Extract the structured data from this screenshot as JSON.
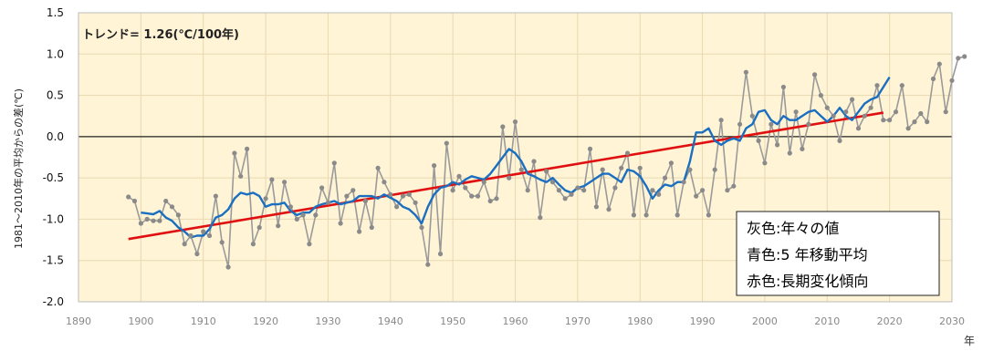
{
  "chart_data": {
    "type": "line",
    "title": "",
    "ylabel": "1981～2010年の平均からの差(℃)",
    "xlabel": "年",
    "annotation": "トレンド= 1.26(℃/100年)",
    "xlim": [
      1890,
      2030
    ],
    "ylim": [
      -2.0,
      1.5
    ],
    "xticks": [
      1890,
      1900,
      1910,
      1920,
      1930,
      1940,
      1950,
      1960,
      1970,
      1980,
      1990,
      2000,
      2010,
      2020,
      2030
    ],
    "yticks": [
      -2.0,
      -1.5,
      -1.0,
      -0.5,
      0.0,
      0.5,
      1.0,
      1.5
    ],
    "grid": true,
    "legend_placement": "bottom-right",
    "legend": [
      "灰色:年々の値",
      "青色:5 年移動平均",
      "赤色:長期変化傾向"
    ],
    "colors": {
      "annual": "#9a9a9a",
      "annual_marker": "#8a8a8a",
      "moving_avg": "#1a6fc0",
      "trend": "#e01010",
      "plot_bg": "#fff4d6",
      "grid": "#e8d9b0"
    },
    "start_year": 1898,
    "annual": [
      -0.73,
      -0.78,
      -1.05,
      -1.0,
      -1.02,
      -1.02,
      -0.78,
      -0.85,
      -0.95,
      -1.3,
      -1.2,
      -1.42,
      -1.15,
      -1.2,
      -0.72,
      -1.28,
      -1.58,
      -0.2,
      -0.48,
      -0.15,
      -1.3,
      -1.1,
      -0.75,
      -0.52,
      -1.08,
      -0.55,
      -0.85,
      -1.0,
      -0.95,
      -1.3,
      -0.95,
      -0.62,
      -0.8,
      -0.32,
      -1.05,
      -0.72,
      -0.65,
      -1.15,
      -0.78,
      -1.1,
      -0.38,
      -0.55,
      -0.7,
      -0.85,
      -0.72,
      -0.7,
      -0.8,
      -1.1,
      -1.55,
      -0.35,
      -1.42,
      -0.08,
      -0.65,
      -0.48,
      -0.62,
      -0.72,
      -0.72,
      -0.55,
      -0.78,
      -0.75,
      0.12,
      -0.5,
      0.18,
      -0.4,
      -0.65,
      -0.3,
      -0.98,
      -0.42,
      -0.55,
      -0.65,
      -0.75,
      -0.7,
      -0.62,
      -0.65,
      -0.15,
      -0.85,
      -0.4,
      -0.88,
      -0.62,
      -0.38,
      -0.2,
      -0.95,
      -0.38,
      -0.95,
      -0.65,
      -0.7,
      -0.5,
      -0.32,
      -0.95,
      -0.55,
      -0.4,
      -0.72,
      -0.65,
      -0.95,
      -0.4,
      0.2,
      -0.65,
      -0.6,
      0.15,
      0.78,
      0.25,
      -0.05,
      -0.32,
      0.15,
      -0.1,
      0.6,
      -0.2,
      0.3,
      -0.15,
      0.15,
      0.75,
      0.5,
      0.35,
      0.25,
      -0.05,
      0.3,
      0.45,
      0.1,
      0.25,
      0.35,
      0.62,
      0.2,
      0.2,
      0.3,
      0.62,
      0.1,
      0.18,
      0.28,
      0.18,
      0.7,
      0.88,
      0.3,
      0.68,
      0.95,
      0.97
    ],
    "moving_avg_start_year": 1900,
    "moving_avg": [
      -0.92,
      -0.93,
      -0.94,
      -0.9,
      -0.98,
      -1.02,
      -1.1,
      -1.15,
      -1.22,
      -1.2,
      -1.2,
      -1.12,
      -0.98,
      -0.95,
      -0.88,
      -0.75,
      -0.68,
      -0.7,
      -0.68,
      -0.72,
      -0.85,
      -0.82,
      -0.82,
      -0.8,
      -0.9,
      -0.95,
      -0.92,
      -0.92,
      -0.85,
      -0.82,
      -0.8,
      -0.78,
      -0.82,
      -0.8,
      -0.78,
      -0.72,
      -0.72,
      -0.72,
      -0.75,
      -0.7,
      -0.74,
      -0.78,
      -0.85,
      -0.88,
      -0.95,
      -1.05,
      -0.85,
      -0.7,
      -0.62,
      -0.6,
      -0.55,
      -0.58,
      -0.52,
      -0.48,
      -0.5,
      -0.52,
      -0.45,
      -0.35,
      -0.25,
      -0.15,
      -0.2,
      -0.3,
      -0.45,
      -0.48,
      -0.52,
      -0.55,
      -0.5,
      -0.58,
      -0.65,
      -0.68,
      -0.62,
      -0.6,
      -0.55,
      -0.5,
      -0.45,
      -0.45,
      -0.5,
      -0.55,
      -0.4,
      -0.42,
      -0.48,
      -0.6,
      -0.75,
      -0.65,
      -0.58,
      -0.6,
      -0.55,
      -0.55,
      -0.3,
      0.05,
      0.05,
      0.1,
      -0.05,
      -0.1,
      -0.05,
      -0.02,
      -0.05,
      0.1,
      0.15,
      0.3,
      0.32,
      0.2,
      0.15,
      0.25,
      0.2,
      0.2,
      0.25,
      0.3,
      0.32,
      0.25,
      0.18,
      0.25,
      0.35,
      0.25,
      0.2,
      0.3,
      0.4,
      0.45,
      0.48,
      0.6,
      0.72
    ],
    "trend": {
      "x": [
        1898,
        2019
      ],
      "y": [
        -1.24,
        0.29
      ]
    }
  }
}
